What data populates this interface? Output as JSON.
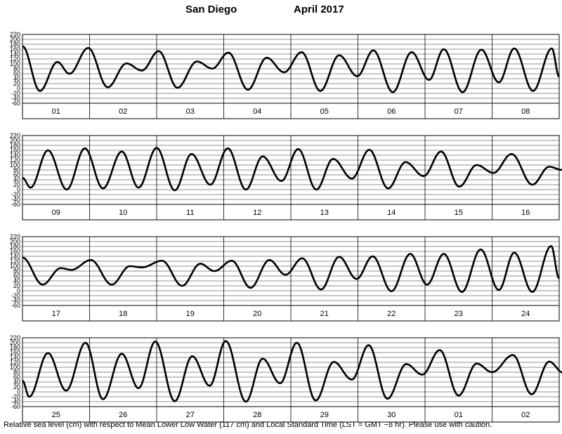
{
  "header": {
    "location": "San Diego",
    "month_year": "April   2017"
  },
  "footer": {
    "note": "Relative sea level (cm) with respect to Mean Lower Low Water (117 cm) and Local Standard Time (LST = GMT −8 hr). Please use with caution."
  },
  "chart_data": [
    {
      "type": "line",
      "x_labels": [
        "01",
        "02",
        "03",
        "04",
        "05",
        "06",
        "07",
        "08"
      ],
      "y_ticks": [
        220,
        200,
        180,
        160,
        140,
        120,
        100,
        80,
        60,
        40,
        20,
        0,
        -20,
        -40,
        -60
      ],
      "ylim": [
        -60,
        220
      ],
      "grid": true,
      "series_day_start": 0.0,
      "extrema": [
        [
          0.0,
          172
        ],
        [
          0.26,
          -10
        ],
        [
          0.52,
          108
        ],
        [
          0.7,
          60
        ],
        [
          0.98,
          165
        ],
        [
          1.27,
          5
        ],
        [
          1.55,
          102
        ],
        [
          1.78,
          73
        ],
        [
          2.03,
          152
        ],
        [
          2.31,
          3
        ],
        [
          2.6,
          110
        ],
        [
          2.83,
          81
        ],
        [
          3.07,
          146
        ],
        [
          3.36,
          -5
        ],
        [
          3.64,
          125
        ],
        [
          3.9,
          66
        ],
        [
          4.16,
          148
        ],
        [
          4.44,
          -10
        ],
        [
          4.72,
          135
        ],
        [
          4.99,
          50
        ],
        [
          5.23,
          155
        ],
        [
          5.52,
          -15
        ],
        [
          5.8,
          148
        ],
        [
          6.06,
          35
        ],
        [
          6.28,
          160
        ],
        [
          6.56,
          -15
        ],
        [
          6.84,
          158
        ],
        [
          7.1,
          25
        ],
        [
          7.33,
          163
        ],
        [
          7.61,
          -10
        ],
        [
          7.89,
          163
        ],
        [
          8.0,
          48
        ]
      ]
    },
    {
      "type": "line",
      "x_labels": [
        "09",
        "10",
        "11",
        "12",
        "13",
        "14",
        "15",
        "16"
      ],
      "y_ticks": [
        220,
        200,
        180,
        160,
        140,
        120,
        100,
        80,
        60,
        40,
        20,
        0,
        -20,
        -40,
        -60
      ],
      "ylim": [
        -60,
        220
      ],
      "grid": true,
      "series_day_start": 8.0,
      "extrema": [
        [
          8.0,
          48
        ],
        [
          8.12,
          8
        ],
        [
          8.38,
          160
        ],
        [
          8.66,
          0
        ],
        [
          8.93,
          168
        ],
        [
          9.2,
          5
        ],
        [
          9.48,
          155
        ],
        [
          9.73,
          8
        ],
        [
          10.0,
          170
        ],
        [
          10.27,
          -3
        ],
        [
          10.52,
          145
        ],
        [
          10.8,
          20
        ],
        [
          11.06,
          168
        ],
        [
          11.33,
          0
        ],
        [
          11.58,
          135
        ],
        [
          11.86,
          35
        ],
        [
          12.11,
          165
        ],
        [
          12.38,
          0
        ],
        [
          12.63,
          125
        ],
        [
          12.91,
          45
        ],
        [
          13.17,
          162
        ],
        [
          13.45,
          5
        ],
        [
          13.71,
          112
        ],
        [
          13.98,
          55
        ],
        [
          14.24,
          155
        ],
        [
          14.51,
          12
        ],
        [
          14.77,
          100
        ],
        [
          15.02,
          68
        ],
        [
          15.29,
          145
        ],
        [
          15.6,
          20
        ],
        [
          15.85,
          93
        ],
        [
          16.05,
          80
        ],
        [
          16.32,
          135
        ],
        [
          16.4,
          140
        ]
      ]
    },
    {
      "type": "line",
      "x_labels": [
        "17",
        "18",
        "19",
        "20",
        "21",
        "22",
        "23",
        "24"
      ],
      "y_ticks": [
        220,
        200,
        180,
        160,
        140,
        120,
        100,
        80,
        60,
        40,
        20,
        0,
        -20,
        -40,
        -60
      ],
      "ylim": [
        -60,
        220
      ],
      "grid": true,
      "series_day_start": 16.0,
      "extrema": [
        [
          16.0,
          135
        ],
        [
          16.3,
          25
        ],
        [
          16.57,
          92
        ],
        [
          16.73,
          85
        ],
        [
          17.02,
          125
        ],
        [
          17.33,
          25
        ],
        [
          17.6,
          100
        ],
        [
          17.78,
          95
        ],
        [
          18.08,
          122
        ],
        [
          18.38,
          20
        ],
        [
          18.65,
          110
        ],
        [
          18.86,
          80
        ],
        [
          19.12,
          122
        ],
        [
          19.4,
          12
        ],
        [
          19.68,
          125
        ],
        [
          19.92,
          65
        ],
        [
          20.17,
          132
        ],
        [
          20.45,
          5
        ],
        [
          20.72,
          138
        ],
        [
          20.98,
          48
        ],
        [
          21.22,
          140
        ],
        [
          21.5,
          -2
        ],
        [
          21.78,
          150
        ],
        [
          22.03,
          25
        ],
        [
          22.28,
          150
        ],
        [
          22.55,
          -5
        ],
        [
          22.83,
          168
        ],
        [
          23.1,
          3
        ],
        [
          23.33,
          155
        ],
        [
          23.6,
          -5
        ],
        [
          23.88,
          182
        ],
        [
          24.0,
          50
        ]
      ]
    },
    {
      "type": "line",
      "x_labels": [
        "25",
        "26",
        "27",
        "28",
        "29",
        "30",
        "01",
        "02"
      ],
      "y_ticks": [
        220,
        200,
        180,
        160,
        140,
        120,
        100,
        80,
        60,
        40,
        20,
        0,
        -20,
        -40,
        -60
      ],
      "ylim": [
        -60,
        220
      ],
      "grid": true,
      "series_day_start": 24.0,
      "extrema": [
        [
          24.0,
          45
        ],
        [
          24.1,
          -20
        ],
        [
          24.38,
          158
        ],
        [
          24.65,
          5
        ],
        [
          24.94,
          200
        ],
        [
          25.2,
          -30
        ],
        [
          25.48,
          155
        ],
        [
          25.73,
          15
        ],
        [
          25.98,
          205
        ],
        [
          26.27,
          -38
        ],
        [
          26.53,
          145
        ],
        [
          26.79,
          25
        ],
        [
          27.03,
          207
        ],
        [
          27.33,
          -40
        ],
        [
          27.58,
          135
        ],
        [
          27.84,
          35
        ],
        [
          28.09,
          200
        ],
        [
          28.37,
          -35
        ],
        [
          28.64,
          122
        ],
        [
          28.91,
          50
        ],
        [
          29.16,
          190
        ],
        [
          29.44,
          -28
        ],
        [
          29.72,
          113
        ],
        [
          29.96,
          70
        ],
        [
          30.22,
          170
        ],
        [
          30.5,
          -15
        ],
        [
          30.77,
          115
        ],
        [
          31.0,
          80
        ],
        [
          31.31,
          150
        ],
        [
          31.59,
          -10
        ],
        [
          31.85,
          123
        ],
        [
          32.06,
          78
        ],
        [
          32.28,
          100
        ]
      ]
    }
  ]
}
